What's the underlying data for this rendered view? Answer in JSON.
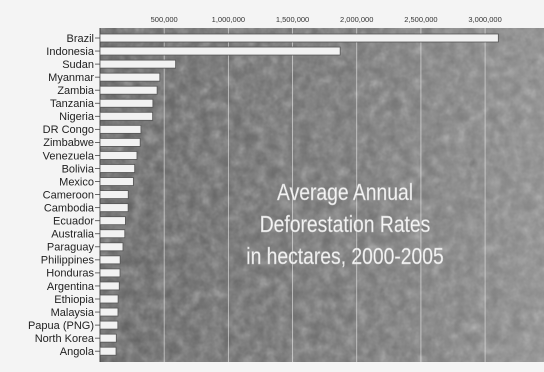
{
  "chart_data": {
    "type": "bar",
    "orientation": "horizontal",
    "title_lines": [
      "Average Annual",
      "Deforestation Rates",
      "in hectares, 2000-2005"
    ],
    "categories": [
      "Brazil",
      "Indonesia",
      "Sudan",
      "Myanmar",
      "Zambia",
      "Tanzania",
      "Nigeria",
      "DR Congo",
      "Zimbabwe",
      "Venezuela",
      "Bolivia",
      "Mexico",
      "Cameroon",
      "Cambodia",
      "Ecuador",
      "Australia",
      "Paraguay",
      "Philippines",
      "Honduras",
      "Argentina",
      "Ethiopia",
      "Malaysia",
      "Papua (PNG)",
      "North Korea",
      "Angola"
    ],
    "values": [
      3103000,
      1871000,
      589000,
      466000,
      445000,
      412000,
      410000,
      319000,
      313000,
      288000,
      270000,
      260000,
      220000,
      219000,
      198000,
      193000,
      179000,
      157000,
      156000,
      150000,
      141000,
      140000,
      139000,
      127000,
      125000
    ],
    "xlim": [
      0,
      3200000
    ],
    "xticks": [
      500000,
      1000000,
      1500000,
      2000000,
      2500000,
      3000000
    ],
    "xtick_labels": [
      "500,000",
      "1,000,000",
      "1,500,000",
      "2,000,000",
      "2,500,000",
      "3,000,000"
    ],
    "grid": true,
    "colors": {
      "bar_fill": "#f2f2f2",
      "bar_stroke": "#555555",
      "background": "#6e6e6e",
      "grid": "#e8e8e8"
    }
  }
}
